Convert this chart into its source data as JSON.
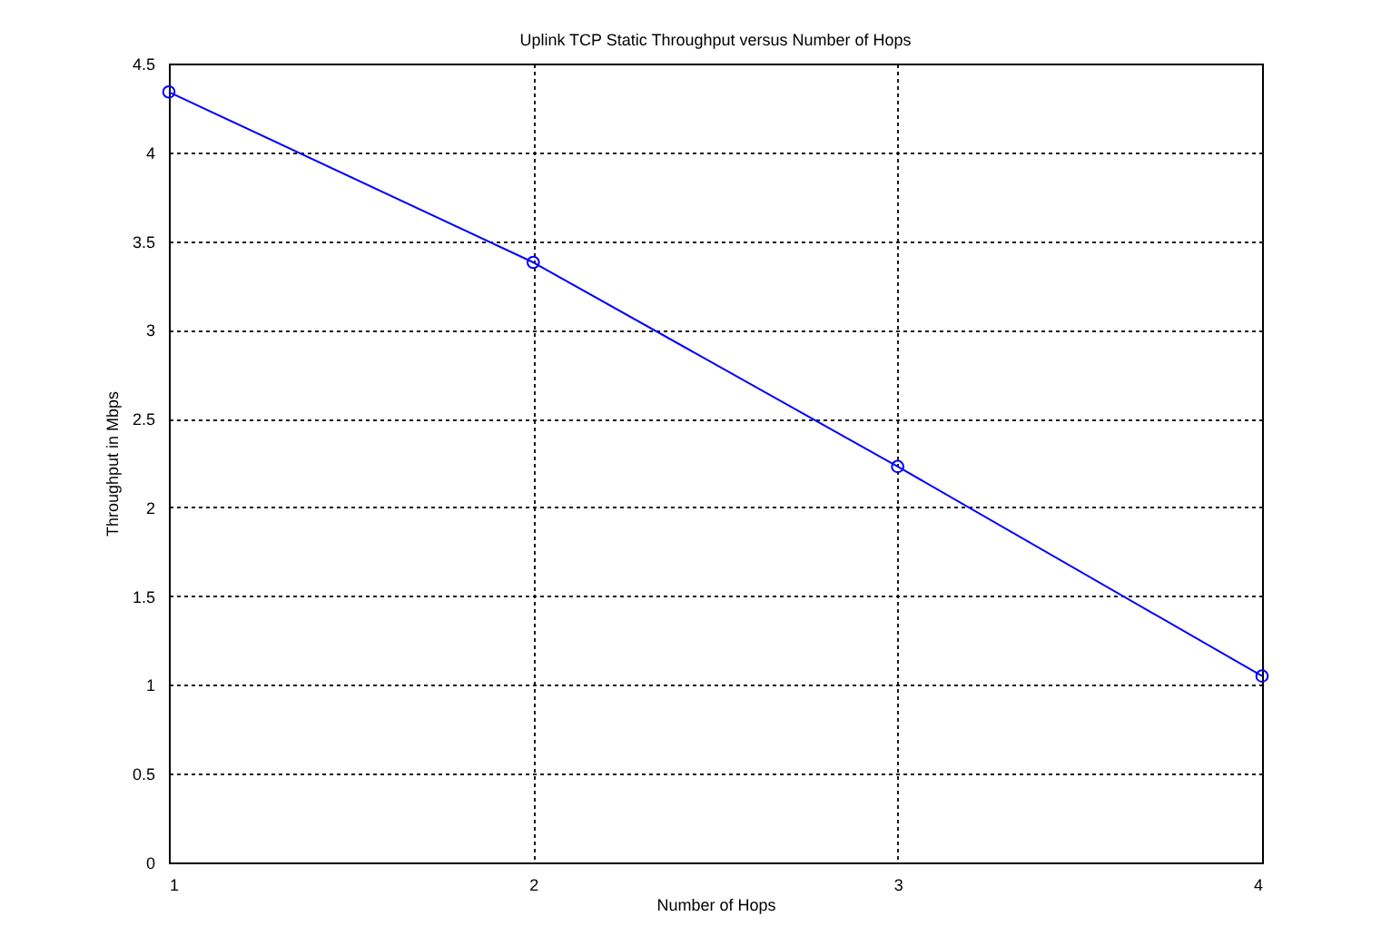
{
  "chart_data": {
    "type": "line",
    "title": "Uplink TCP Static Throughput versus Number of Hops",
    "xlabel": "Number of Hops",
    "ylabel": "Throughput in Mbps",
    "x": [
      1,
      2,
      3,
      4
    ],
    "series": [
      {
        "color": "#0000ff",
        "values": [
          4.34,
          3.38,
          2.23,
          1.05
        ]
      }
    ],
    "xlim": [
      1,
      4
    ],
    "xticks": [
      1,
      2,
      3,
      4
    ],
    "ylim": [
      0,
      4.5
    ],
    "yticks": [
      0,
      0.5,
      1,
      1.5,
      2,
      2.5,
      3,
      3.5,
      4,
      4.5
    ],
    "grid": true,
    "marker": "circle",
    "line_style": "solid"
  }
}
